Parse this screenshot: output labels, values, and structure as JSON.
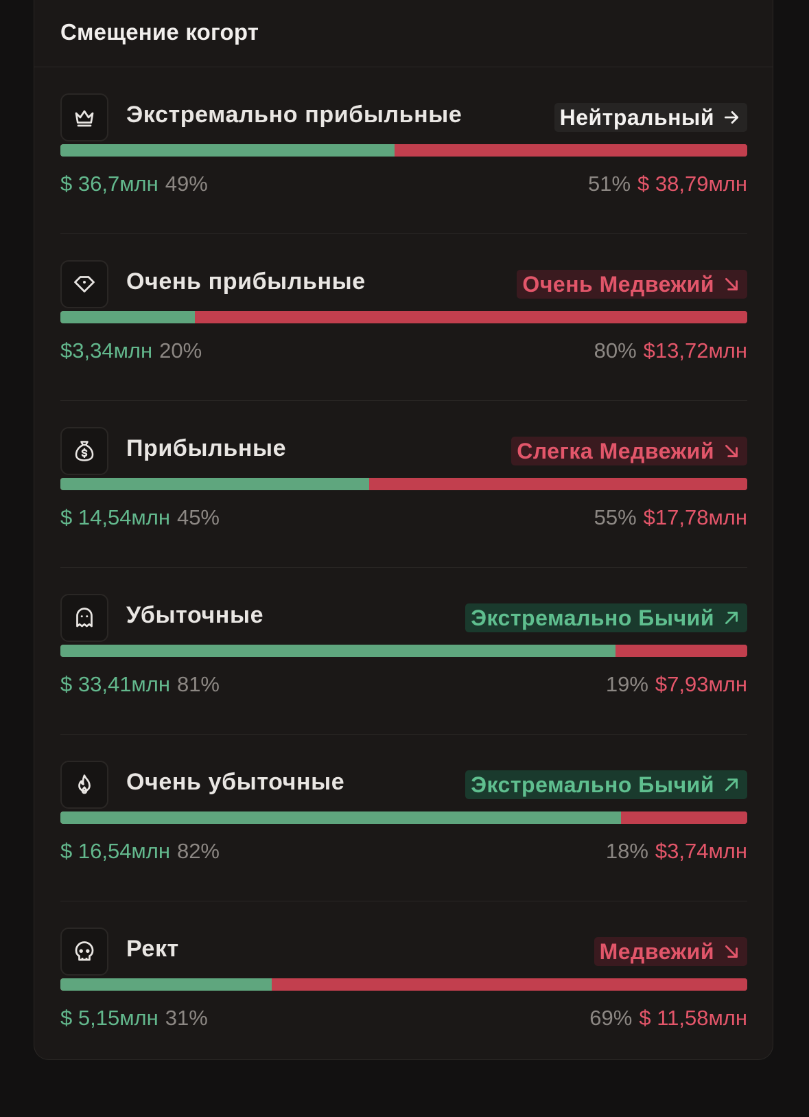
{
  "title": "Смещение когорт",
  "colors": {
    "green": "#5fa67e",
    "red": "#c23f4e",
    "bull_badge_bg": "#1a3a2d",
    "bear_badge_bg": "#3a1a1f",
    "neutral_badge_bg": "#262423"
  },
  "cohorts": [
    {
      "name": "Экстремально прибыльные",
      "icon": "crown-icon",
      "sentiment": "Нейтральный",
      "sentiment_type": "neutral",
      "arrow": "arrow-right-icon",
      "buy_amount": "$ 36,7млн",
      "buy_pct": "49%",
      "sell_pct": "51%",
      "sell_amount": "$ 38,79млн",
      "buy_fraction": 0.487
    },
    {
      "name": "Очень прибыльные",
      "icon": "diamond-icon",
      "sentiment": "Очень Медвежий",
      "sentiment_type": "bear",
      "arrow": "arrow-down-right-icon",
      "buy_amount": "$3,34млн",
      "buy_pct": "20%",
      "sell_pct": "80%",
      "sell_amount": "$13,72млн",
      "buy_fraction": 0.196
    },
    {
      "name": "Прибыльные",
      "icon": "money-bag-icon",
      "sentiment": "Слегка Медвежий",
      "sentiment_type": "bear",
      "arrow": "arrow-down-right-icon",
      "buy_amount": "$ 14,54млн",
      "buy_pct": "45%",
      "sell_pct": "55%",
      "sell_amount": "$17,78млн",
      "buy_fraction": 0.45
    },
    {
      "name": "Убыточные",
      "icon": "ghost-icon",
      "sentiment": "Экстремально Бычий",
      "sentiment_type": "bull",
      "arrow": "arrow-up-right-icon",
      "buy_amount": "$ 33,41млн",
      "buy_pct": "81%",
      "sell_pct": "19%",
      "sell_amount": "$7,93млн",
      "buy_fraction": 0.808
    },
    {
      "name": "Очень убыточные",
      "icon": "flame-icon",
      "sentiment": "Экстремально Бычий",
      "sentiment_type": "bull",
      "arrow": "arrow-up-right-icon",
      "buy_amount": "$ 16,54млн",
      "buy_pct": "82%",
      "sell_pct": "18%",
      "sell_amount": "$3,74млн",
      "buy_fraction": 0.816
    },
    {
      "name": "Рект",
      "icon": "skull-icon",
      "sentiment": "Медвежий",
      "sentiment_type": "bear",
      "arrow": "arrow-down-right-icon",
      "buy_amount": "$ 5,15млн",
      "buy_pct": "31%",
      "sell_pct": "69%",
      "sell_amount": "$ 11,58млн",
      "buy_fraction": 0.308
    }
  ]
}
